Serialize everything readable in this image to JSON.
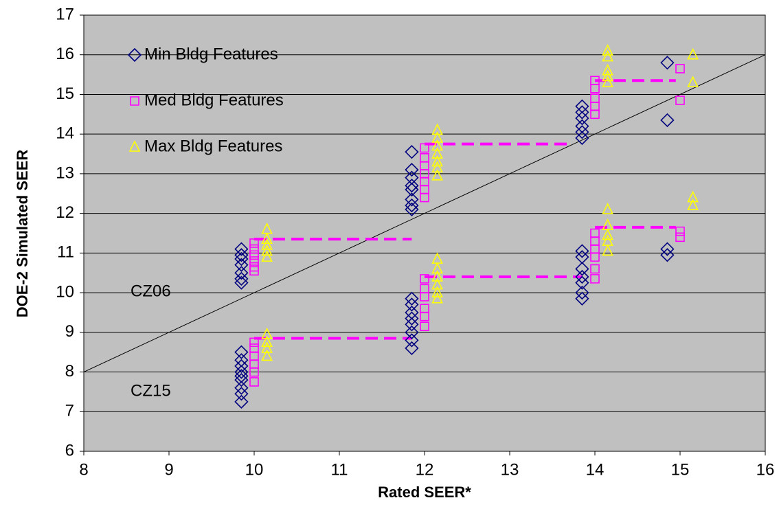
{
  "chart_data": {
    "type": "scatter",
    "xlabel": "Rated SEER*",
    "ylabel": "DOE-2 Simulated SEER",
    "xlim": [
      8,
      16
    ],
    "xticks": [
      8,
      9,
      10,
      11,
      12,
      13,
      14,
      15,
      16
    ],
    "ylim": [
      6,
      17
    ],
    "yticks": [
      6,
      7,
      8,
      9,
      10,
      11,
      12,
      13,
      14,
      15,
      16,
      17
    ],
    "grid": true,
    "legend": "upper left",
    "background": "#c0c0c0",
    "series": [
      {
        "name": "Min Bldg Features",
        "color": "#000080",
        "marker": "diamond",
        "x": [
          9.85,
          9.85,
          9.85,
          9.85,
          9.85,
          9.85,
          9.85,
          9.85,
          9.85,
          9.85,
          9.85,
          9.85,
          9.85,
          9.85,
          9.85,
          9.85,
          11.85,
          11.85,
          11.85,
          11.85,
          11.85,
          11.85,
          11.85,
          11.85,
          11.85,
          11.85,
          11.85,
          11.85,
          11.85,
          11.85,
          11.85,
          11.85,
          13.85,
          13.85,
          13.85,
          13.85,
          13.85,
          13.85,
          13.85,
          13.85,
          13.85,
          13.85,
          13.85,
          13.85,
          13.85,
          14.85,
          14.85,
          14.85,
          14.85
        ],
        "y": [
          11.1,
          10.95,
          10.85,
          10.7,
          10.5,
          10.35,
          10.25,
          8.5,
          8.3,
          8.15,
          8.0,
          7.9,
          7.8,
          7.6,
          7.45,
          7.25,
          13.55,
          13.1,
          12.9,
          12.7,
          12.6,
          12.35,
          12.2,
          12.1,
          9.85,
          9.7,
          9.5,
          9.35,
          9.2,
          9.0,
          8.8,
          8.6,
          14.7,
          14.55,
          14.4,
          14.2,
          14.05,
          13.9,
          11.05,
          10.9,
          10.6,
          10.4,
          10.25,
          10.0,
          9.85,
          15.8,
          14.35,
          11.1,
          10.95
        ]
      },
      {
        "name": "Med Bldg Features",
        "color": "#ff00ff",
        "marker": "square",
        "x": [
          10,
          10,
          10,
          10,
          10,
          10,
          10,
          10,
          10,
          10,
          10,
          10,
          12,
          12,
          12,
          12,
          12,
          12,
          12,
          12,
          12,
          12,
          12,
          12,
          12,
          14,
          14,
          14,
          14,
          14,
          14,
          14,
          14,
          14,
          14,
          14,
          15,
          15,
          15,
          15
        ],
        "y": [
          11.25,
          11.1,
          10.95,
          10.8,
          10.65,
          10.55,
          8.75,
          8.6,
          8.4,
          8.2,
          8.0,
          7.75,
          13.65,
          13.4,
          13.2,
          13.0,
          12.8,
          12.6,
          12.4,
          10.35,
          10.1,
          9.9,
          9.6,
          9.4,
          9.15,
          15.35,
          15.15,
          14.9,
          14.7,
          14.5,
          11.5,
          11.3,
          11.1,
          10.9,
          10.6,
          10.35,
          15.65,
          14.85,
          11.55,
          11.4
        ]
      },
      {
        "name": "Max Bldg Features",
        "color": "#ffff00",
        "marker": "triangle",
        "x": [
          10.15,
          10.15,
          10.15,
          10.15,
          10.15,
          10.15,
          10.15,
          10.15,
          10.15,
          12.15,
          12.15,
          12.15,
          12.15,
          12.15,
          12.15,
          12.15,
          12.15,
          12.15,
          12.15,
          12.15,
          12.15,
          12.15,
          14.15,
          14.15,
          14.15,
          14.15,
          14.15,
          14.15,
          14.15,
          14.15,
          14.15,
          14.15,
          15.15,
          15.15,
          15.15,
          15.15
        ],
        "y": [
          11.6,
          11.35,
          11.2,
          11.05,
          10.9,
          8.95,
          8.75,
          8.6,
          8.4,
          14.1,
          13.9,
          13.7,
          13.5,
          13.3,
          13.15,
          12.95,
          10.85,
          10.6,
          10.4,
          10.2,
          10.0,
          9.85,
          16.1,
          15.95,
          15.6,
          15.45,
          15.3,
          12.1,
          11.7,
          11.45,
          11.3,
          11.05,
          16.0,
          15.3,
          12.4,
          12.2
        ]
      }
    ],
    "diagonal": {
      "color": "#000000",
      "x": [
        8,
        16
      ],
      "y": [
        8,
        16
      ]
    },
    "step_lines": {
      "color": "#ff00ff",
      "lines": [
        {
          "x": [
            10,
            11.85
          ],
          "y": [
            11.35,
            11.35
          ]
        },
        {
          "x": [
            12,
            13.7
          ],
          "y": [
            13.75,
            13.75
          ]
        },
        {
          "x": [
            14,
            14.95
          ],
          "y": [
            15.35,
            15.35
          ]
        },
        {
          "x": [
            10,
            11.85
          ],
          "y": [
            8.85,
            8.85
          ]
        },
        {
          "x": [
            12,
            13.85
          ],
          "y": [
            10.4,
            10.4
          ]
        },
        {
          "x": [
            14,
            14.95
          ],
          "y": [
            11.65,
            11.65
          ]
        }
      ]
    },
    "annotations": [
      "CZ06",
      "CZ15"
    ]
  }
}
